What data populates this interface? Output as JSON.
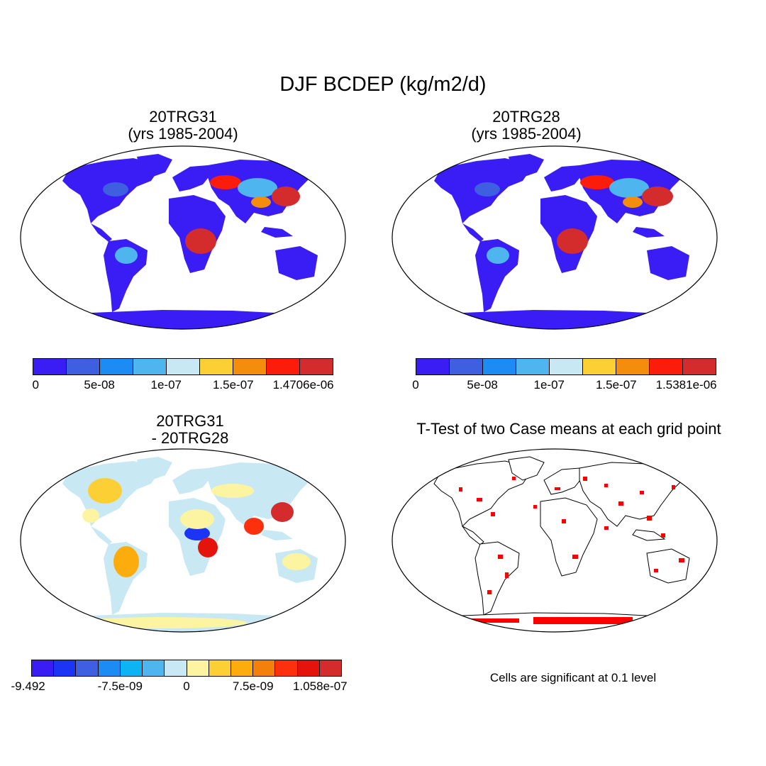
{
  "title": "DJF BCDEP (kg/m2/d)",
  "panels": [
    {
      "title_line1": "20TRG31",
      "title_line2": "(yrs 1985-2004)"
    },
    {
      "title_line1": "20TRG28",
      "title_line2": "(yrs 1985-2004)"
    },
    {
      "title_line1": "20TRG31",
      "title_line2": "- 20TRG28"
    },
    {
      "title_line1": "T-Test of two Case means at each grid point"
    }
  ],
  "colorbars": {
    "a": {
      "colors": [
        "#3a1cf4",
        "#3d5fe0",
        "#1c8cf4",
        "#4fb5ee",
        "#c8e8f4",
        "#fcd034",
        "#f48c0c",
        "#fc1c0c",
        "#d42c2c"
      ],
      "labels": [
        "0",
        "5e-08",
        "1e-07",
        "1.5e-07",
        "1.4706e-06"
      ]
    },
    "b": {
      "colors": [
        "#3a1cf4",
        "#3d5fe0",
        "#1c8cf4",
        "#4fb5ee",
        "#c8e8f4",
        "#fcd034",
        "#f48c0c",
        "#fc1c0c",
        "#d42c2c"
      ],
      "labels": [
        "0",
        "5e-08",
        "1e-07",
        "1.5e-07",
        "1.5381e-06"
      ]
    },
    "c": {
      "colors": [
        "#3a1cf4",
        "#1c34f4",
        "#3d5fe0",
        "#1c8cf4",
        "#0cb4f4",
        "#4fb5ee",
        "#c8e8f4",
        "#fcf4a0",
        "#fcd034",
        "#fcac0c",
        "#f4800c",
        "#fc300c",
        "#e4140c",
        "#d42c2c"
      ],
      "labels": [
        "-9.492",
        "-7.5e-09",
        "0",
        "7.5e-09",
        "1.058e-07"
      ]
    }
  },
  "note": "Cells are significant at 0.1 level"
}
